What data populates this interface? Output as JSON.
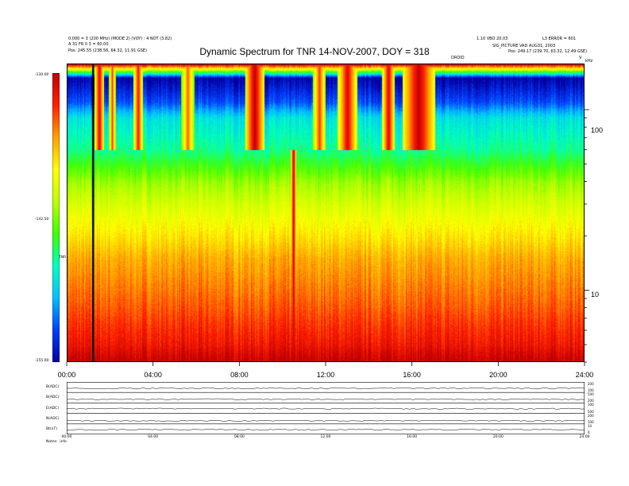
{
  "header": {
    "left_line1": "0.000 = 3 (200 MHz) (MODE 2) (VOY) : 4 NOT (3.82)",
    "left_line2": "A 31 FR 0 3 = 60.00",
    "left_line3": "Pos:   245.55 (238.56, 64.32, 11.91 GSE)",
    "right_line1": "1.10 VBO 20.03",
    "right_line2": "L3 ERROR = 601",
    "right_line3": "SIG_PICTURE VAD AUG31, 2003",
    "right_line4": "Pos:   249.17 (239.70, 63.32, 12.49 GSE)",
    "center_tag": "DROID",
    "unit_top": "kHz",
    "unit_v": "V"
  },
  "footer": {
    "label": "Notes:   .info"
  },
  "chart_data": {
    "type": "heatmap",
    "title": "Dynamic Spectrum for TNR 14-NOV-2007, DOY = 318",
    "xlabel": "",
    "ylabel": "",
    "x_ticks": [
      "00:00",
      "04:00",
      "08:00",
      "12:00",
      "16:00",
      "20:00",
      "24:00"
    ],
    "xlim": [
      0,
      24
    ],
    "y_scale": "log",
    "y_ticks": [
      "100",
      "10"
    ],
    "ylim_khz": [
      4,
      180
    ],
    "colorbar": {
      "label": "TNR",
      "ticks": [
        "-130.00",
        "-142.50",
        "-155.00"
      ],
      "range": [
        -155,
        -130
      ],
      "colors": [
        "#0000a0",
        "#0040ff",
        "#00c0ff",
        "#00ffc0",
        "#40ff00",
        "#c0ff00",
        "#ffff00",
        "#ffa000",
        "#ff2000",
        "#c00000"
      ]
    },
    "background_levels": [
      {
        "freq_khz": 180,
        "level": -130
      },
      {
        "freq_khz": 150,
        "level": -155
      },
      {
        "freq_khz": 110,
        "level": -152
      },
      {
        "freq_khz": 90,
        "level": -148
      },
      {
        "freq_khz": 60,
        "level": -146
      },
      {
        "freq_khz": 40,
        "level": -142
      },
      {
        "freq_khz": 25,
        "level": -139
      },
      {
        "freq_khz": 15,
        "level": -136
      },
      {
        "freq_khz": 8,
        "level": -134
      },
      {
        "freq_khz": 5,
        "level": -132
      },
      {
        "freq_khz": 4,
        "level": -130
      }
    ],
    "events": [
      {
        "t": 1.5,
        "width": 0.15,
        "fmin": 60,
        "fmax": 180,
        "level": -131
      },
      {
        "t": 2.1,
        "width": 0.1,
        "fmin": 60,
        "fmax": 180,
        "level": -133
      },
      {
        "t": 3.3,
        "width": 0.15,
        "fmin": 60,
        "fmax": 180,
        "level": -132
      },
      {
        "t": 5.6,
        "width": 0.2,
        "fmin": 60,
        "fmax": 180,
        "level": -134
      },
      {
        "t": 8.7,
        "width": 0.3,
        "fmin": 60,
        "fmax": 180,
        "level": -130
      },
      {
        "t": 10.5,
        "width": 0.08,
        "fmin": 4,
        "fmax": 60,
        "level": -130
      },
      {
        "t": 11.7,
        "width": 0.2,
        "fmin": 60,
        "fmax": 180,
        "level": -133
      },
      {
        "t": 13.0,
        "width": 0.3,
        "fmin": 60,
        "fmax": 180,
        "level": -131
      },
      {
        "t": 14.9,
        "width": 0.2,
        "fmin": 60,
        "fmax": 180,
        "level": -131
      },
      {
        "t": 16.3,
        "width": 0.5,
        "fmin": 60,
        "fmax": 180,
        "level": -130
      }
    ],
    "marker_line_t": 1.2,
    "stack_panels": [
      {
        "name": "B(ADC)",
        "right_ticks": [
          "200",
          "100"
        ],
        "level": 0.4
      },
      {
        "name": "B(ADC)",
        "right_ticks": [
          "500",
          "200"
        ],
        "level": 0.35
      },
      {
        "name": "E(ADC)",
        "right_ticks": [
          "100",
          "500"
        ],
        "level": 0.45
      },
      {
        "name": "N(ADC)",
        "right_ticks": [
          "200",
          "100"
        ],
        "level": 0.3
      },
      {
        "name": "Bt(nT)",
        "right_ticks": [
          "10",
          "0"
        ],
        "level": 0.45
      }
    ],
    "stack_x_ticks": [
      "00:00",
      "04:00",
      "08:00",
      "12:00",
      "16:00",
      "20:00",
      "24:00"
    ]
  }
}
